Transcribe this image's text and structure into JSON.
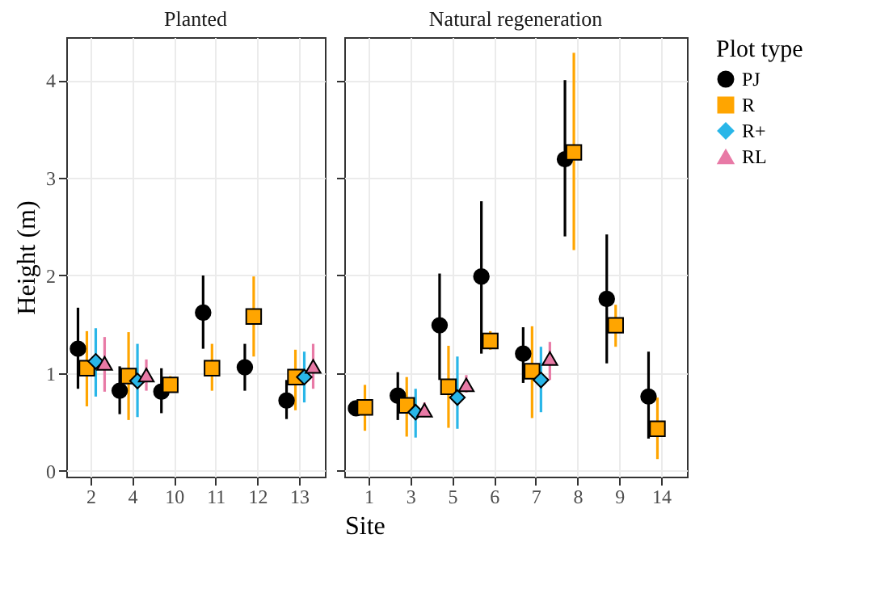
{
  "chart_data": [
    {
      "type": "scatter",
      "title": "Planted",
      "ylabel": "Height (m)",
      "categories": [
        "2",
        "4",
        "10",
        "11",
        "12",
        "13"
      ],
      "ylim": [
        -0.06,
        4.44
      ],
      "yticks": [
        0,
        1,
        2,
        3,
        4
      ],
      "grid": true,
      "series": [
        {
          "color": "#000000",
          "marker": "circle",
          "values": [
            1.25,
            0.82,
            0.81,
            1.62,
            1.06,
            0.72
          ],
          "errors": [
            [
              0.84,
              1.67
            ],
            [
              0.58,
              1.07
            ],
            [
              0.59,
              1.05
            ],
            [
              1.25,
              2.0
            ],
            [
              0.82,
              1.3
            ],
            [
              0.53,
              0.93
            ]
          ]
        },
        {
          "color": "#ffa500",
          "marker": "square",
          "values": [
            1.05,
            0.97,
            0.88,
            1.05,
            1.58,
            0.96
          ],
          "errors": [
            [
              0.66,
              1.43
            ],
            [
              0.52,
              1.42
            ],
            [
              0.8,
              0.97
            ],
            [
              0.82,
              1.3
            ],
            [
              1.17,
              1.99
            ],
            [
              0.62,
              1.24
            ]
          ]
        },
        {
          "color": "#29b6e8",
          "marker": "diamond",
          "values": [
            1.12,
            0.92,
            null,
            null,
            null,
            0.96
          ],
          "errors": [
            [
              0.76,
              1.46
            ],
            [
              0.55,
              1.3
            ],
            null,
            null,
            null,
            [
              0.7,
              1.22
            ]
          ]
        },
        {
          "color": "#e87aa6",
          "marker": "triangle",
          "values": [
            1.1,
            0.98,
            null,
            null,
            null,
            1.07
          ],
          "errors": [
            [
              0.81,
              1.37
            ],
            [
              0.82,
              1.14
            ],
            null,
            null,
            null,
            [
              0.84,
              1.3
            ]
          ]
        }
      ]
    },
    {
      "type": "scatter",
      "title": "Natural regeneration",
      "xlabel": "Site",
      "legend_title": "Plot type",
      "categories": [
        "1",
        "3",
        "5",
        "6",
        "7",
        "8",
        "9",
        "14"
      ],
      "ylim": [
        -0.06,
        4.44
      ],
      "yticks": [
        0,
        1,
        2,
        3,
        4
      ],
      "grid": true,
      "legend": "right",
      "tick_labels": "x",
      "series": [
        {
          "name": "PJ",
          "color": "#000000",
          "marker": "circle",
          "values": [
            0.64,
            0.77,
            1.49,
            1.99,
            1.2,
            3.19,
            1.76,
            0.76
          ],
          "errors": [
            [
              0.61,
              0.68
            ],
            [
              0.52,
              1.01
            ],
            [
              0.93,
              2.02
            ],
            [
              1.2,
              2.76
            ],
            [
              0.9,
              1.47
            ],
            [
              2.4,
              4.0
            ],
            [
              1.1,
              2.42
            ],
            [
              0.33,
              1.22
            ]
          ]
        },
        {
          "name": "R",
          "color": "#ffa500",
          "marker": "square",
          "values": [
            0.65,
            0.67,
            0.86,
            1.33,
            1.02,
            3.26,
            1.49,
            0.43
          ],
          "errors": [
            [
              0.41,
              0.88
            ],
            [
              0.35,
              0.96
            ],
            [
              0.44,
              1.28
            ],
            [
              1.24,
              1.43
            ],
            [
              0.54,
              1.48
            ],
            [
              2.26,
              4.28
            ],
            [
              1.27,
              1.7
            ],
            [
              0.12,
              0.75
            ]
          ]
        },
        {
          "name": "R+",
          "color": "#29b6e8",
          "marker": "diamond",
          "values": [
            null,
            0.6,
            0.75,
            null,
            0.93,
            null,
            null,
            null
          ],
          "errors": [
            null,
            [
              0.34,
              0.84
            ],
            [
              0.43,
              1.17
            ],
            null,
            [
              0.6,
              1.27
            ],
            null,
            null,
            null
          ]
        },
        {
          "name": "RL",
          "color": "#e87aa6",
          "marker": "triangle",
          "values": [
            null,
            0.62,
            0.88,
            null,
            1.15,
            null,
            null,
            null
          ],
          "errors": [
            null,
            [
              0.55,
              0.7
            ],
            [
              0.8,
              0.98
            ],
            null,
            [
              0.93,
              1.32
            ],
            null,
            null,
            null
          ]
        }
      ]
    }
  ]
}
